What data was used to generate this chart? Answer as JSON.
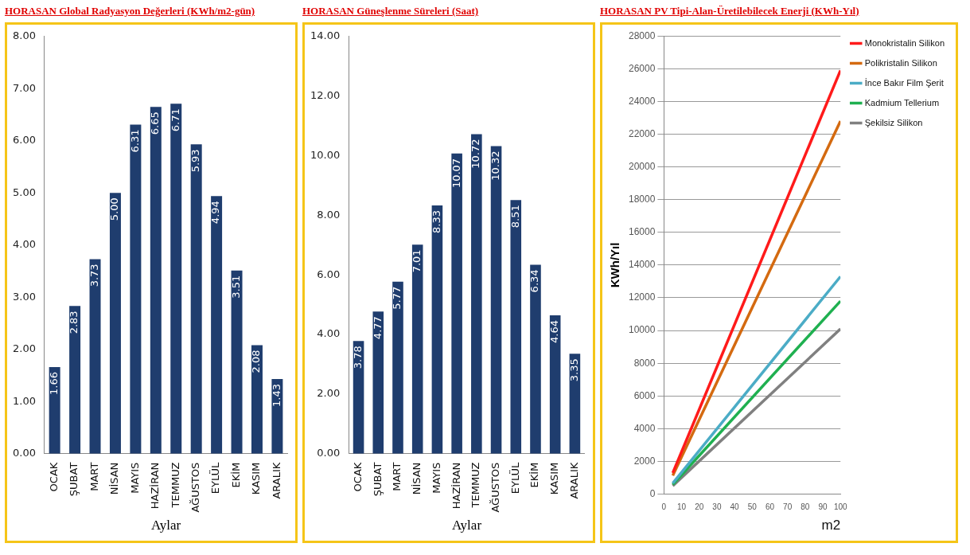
{
  "chart_data": [
    {
      "type": "bar",
      "title": "HORASAN Global Radyasyon Değerleri (KWh/m2-gün)",
      "xlabel": "Aylar",
      "categories": [
        "OCAK",
        "ŞUBAT",
        "MART",
        "NİSAN",
        "MAYIS",
        "HAZİRAN",
        "TEMMUZ",
        "AĞUSTOS",
        "EYLÜL",
        "EKİM",
        "KASIM",
        "ARALIK"
      ],
      "values": [
        1.66,
        2.83,
        3.73,
        5.0,
        6.31,
        6.65,
        6.71,
        5.93,
        4.94,
        3.51,
        2.08,
        1.43
      ],
      "color": "#1f3d6e",
      "value_labels": [
        "1.66",
        "2.83",
        "3.73",
        "5.00",
        "6.31",
        "6.65",
        "6.71",
        "5.93",
        "4.94",
        "3.51",
        "2.08",
        "1.43"
      ],
      "ylim": [
        0,
        8
      ],
      "yticks": [
        {
          "value": 0,
          "label": "0.00"
        },
        {
          "value": 1,
          "label": "1.00"
        },
        {
          "value": 2,
          "label": "2.00"
        },
        {
          "value": 3,
          "label": "3.00"
        },
        {
          "value": 4,
          "label": "4.00"
        },
        {
          "value": 5,
          "label": "5.00"
        },
        {
          "value": 6,
          "label": "6.00"
        },
        {
          "value": 7,
          "label": "7.00"
        },
        {
          "value": 8,
          "label": "8.00"
        }
      ],
      "grid": false,
      "legend": false
    },
    {
      "type": "bar",
      "title": "HORASAN Güneşlenme Süreleri (Saat)",
      "xlabel": "Aylar",
      "categories": [
        "OCAK",
        "ŞUBAT",
        "MART",
        "NİSAN",
        "MAYIS",
        "HAZİRAN",
        "TEMMUZ",
        "AĞUSTOS",
        "EYLÜL",
        "EKİM",
        "KASIM",
        "ARALIK"
      ],
      "values": [
        3.78,
        4.77,
        5.77,
        7.01,
        8.33,
        10.07,
        10.72,
        10.32,
        8.51,
        6.34,
        4.64,
        3.35
      ],
      "color": "#1f3d6e",
      "value_labels": [
        "3.78",
        "4.77",
        "5.77",
        "7.01",
        "8.33",
        "10.07",
        "10.72",
        "10.32",
        "8.51",
        "6.34",
        "4.64",
        "3.35"
      ],
      "ylim": [
        0,
        14
      ],
      "yticks": [
        {
          "value": 0,
          "label": "0.00"
        },
        {
          "value": 2,
          "label": "2.00"
        },
        {
          "value": 4,
          "label": "4.00"
        },
        {
          "value": 6,
          "label": "6.00"
        },
        {
          "value": 8,
          "label": "8.00"
        },
        {
          "value": 10,
          "label": "10.00"
        },
        {
          "value": 12,
          "label": "12.00"
        },
        {
          "value": 14,
          "label": "14.00"
        }
      ],
      "grid": false,
      "legend": false
    },
    {
      "type": "line",
      "title": "HORASAN PV Tipi-Alan-Üretilebilecek Enerji (KWh-Yıl)",
      "xlabel": "m2",
      "ylabel": "KWh/Yıl",
      "x": [
        5,
        100
      ],
      "series": [
        {
          "name": "Monokristalin Silikon",
          "color": "#ff1a1a",
          "values": [
            1300,
            25900
          ]
        },
        {
          "name": "Polikristalin Silikon",
          "color": "#d46a10",
          "values": [
            1140,
            22800
          ]
        },
        {
          "name": "İnce Bakır Film Şerit",
          "color": "#4bacc6",
          "values": [
            670,
            13300
          ]
        },
        {
          "name": "Kadmium Tellerium",
          "color": "#1fb050",
          "values": [
            590,
            11800
          ]
        },
        {
          "name": "Şekilsiz Silikon",
          "color": "#808080",
          "values": [
            510,
            10100
          ]
        }
      ],
      "xlim": [
        0,
        100
      ],
      "xticks": [
        0,
        10,
        20,
        30,
        40,
        50,
        60,
        70,
        80,
        90,
        100
      ],
      "ylim": [
        0,
        28000
      ],
      "yticks": [
        0,
        2000,
        4000,
        6000,
        8000,
        10000,
        12000,
        14000,
        16000,
        18000,
        20000,
        22000,
        24000,
        26000,
        28000
      ],
      "grid": "y",
      "legend": "right"
    }
  ]
}
